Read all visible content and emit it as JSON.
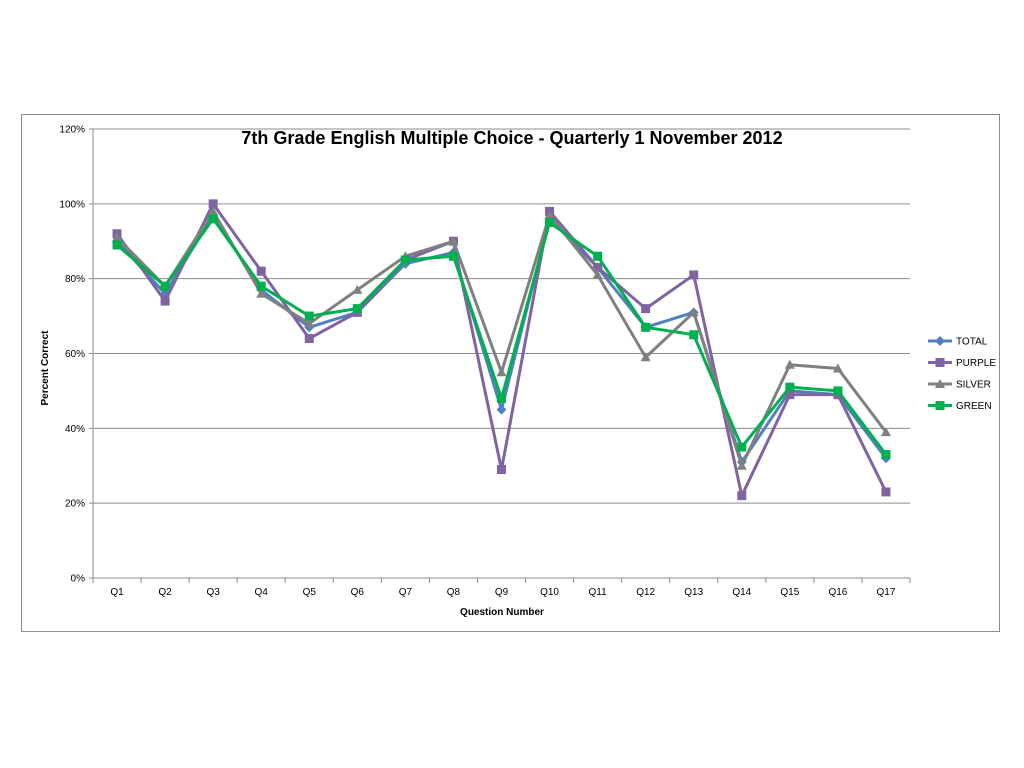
{
  "chart_data": {
    "type": "line",
    "title": "7th Grade English Multiple Choice - Quarterly 1 November 2012",
    "xlabel": "Question Number",
    "ylabel": "Percent Correct",
    "categories": [
      "Q1",
      "Q2",
      "Q3",
      "Q4",
      "Q5",
      "Q6",
      "Q7",
      "Q8",
      "Q9",
      "Q10",
      "Q11",
      "Q12",
      "Q13",
      "Q14",
      "Q15",
      "Q16",
      "Q17"
    ],
    "ylim": [
      0,
      120
    ],
    "yticks": [
      0,
      20,
      40,
      60,
      80,
      100,
      120
    ],
    "ytick_suffix": "%",
    "grid": true,
    "legend_position": "right",
    "series": [
      {
        "name": "TOTAL",
        "color": "#4f81bd",
        "marker": "diamond",
        "values": [
          90,
          76,
          97,
          77,
          67,
          71,
          84,
          87,
          45,
          96,
          83,
          67,
          71,
          31,
          50,
          49,
          32
        ]
      },
      {
        "name": "PURPLE",
        "color": "#8064a2",
        "marker": "square",
        "values": [
          92,
          74,
          100,
          82,
          64,
          71,
          85,
          90,
          29,
          98,
          83,
          72,
          81,
          22,
          49,
          49,
          23
        ]
      },
      {
        "name": "SILVER",
        "color": "#808080",
        "marker": "triangle",
        "values": [
          91,
          78,
          98,
          76,
          68,
          77,
          86,
          90,
          55,
          97,
          81,
          59,
          71,
          30,
          57,
          56,
          39
        ]
      },
      {
        "name": "GREEN",
        "color": "#00b050",
        "marker": "square",
        "values": [
          89,
          78,
          96,
          78,
          70,
          72,
          85,
          86,
          48,
          95,
          86,
          67,
          65,
          35,
          51,
          50,
          33
        ]
      }
    ]
  }
}
